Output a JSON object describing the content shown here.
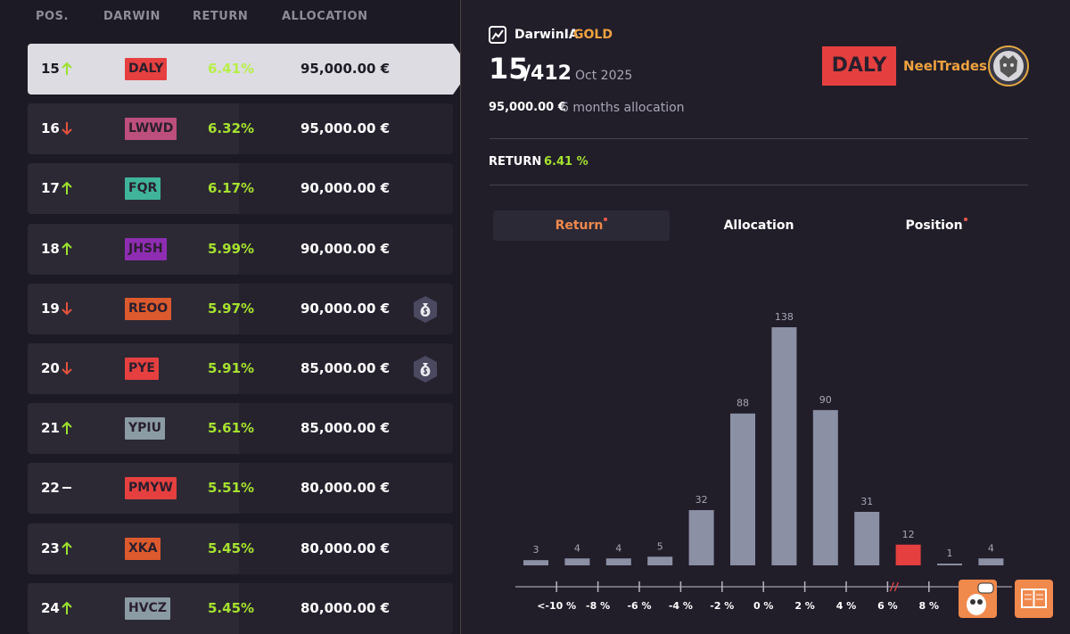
{
  "table": {
    "columns": [
      "POS.",
      "DARWIN",
      "RETURN",
      "ALLOCATION"
    ],
    "selected_index": 0,
    "rows": [
      {
        "pos": "15",
        "trend": "up",
        "darwin": "DALY",
        "color": "#e5403f",
        "return": "6.41%",
        "allocation": "95,000.00 €",
        "badge": false
      },
      {
        "pos": "16",
        "trend": "down",
        "darwin": "LWWD",
        "color": "#bd4f7c",
        "return": "6.32%",
        "allocation": "95,000.00 €",
        "badge": false
      },
      {
        "pos": "17",
        "trend": "up",
        "darwin": "FQR",
        "color": "#3fb49b",
        "return": "6.17%",
        "allocation": "90,000.00 €",
        "badge": false
      },
      {
        "pos": "18",
        "trend": "up",
        "darwin": "JHSH",
        "color": "#8e2db2",
        "return": "5.99%",
        "allocation": "90,000.00 €",
        "badge": false
      },
      {
        "pos": "19",
        "trend": "down",
        "darwin": "REOO",
        "color": "#dc5a2d",
        "return": "5.97%",
        "allocation": "90,000.00 €",
        "badge": true
      },
      {
        "pos": "20",
        "trend": "down",
        "darwin": "PYE",
        "color": "#e5403f",
        "return": "5.91%",
        "allocation": "85,000.00 €",
        "badge": true
      },
      {
        "pos": "21",
        "trend": "up",
        "darwin": "YPIU",
        "color": "#8b9ba4",
        "return": "5.61%",
        "allocation": "85,000.00 €",
        "badge": false
      },
      {
        "pos": "22",
        "trend": "flat",
        "darwin": "PMYW",
        "color": "#e5403f",
        "return": "5.51%",
        "allocation": "80,000.00 €",
        "badge": false
      },
      {
        "pos": "23",
        "trend": "up",
        "darwin": "XKA",
        "color": "#dc5a2d",
        "return": "5.45%",
        "allocation": "80,000.00 €",
        "badge": false
      },
      {
        "pos": "24",
        "trend": "up",
        "darwin": "HVCZ",
        "color": "#8b9ba4",
        "return": "5.45%",
        "allocation": "80,000.00 €",
        "badge": false
      }
    ]
  },
  "detail": {
    "brand": "DarwinIA",
    "tier": "GOLD",
    "position": "15",
    "total": "/412",
    "period": "Oct 2025",
    "darwin": "DALY",
    "darwin_color": "#e5403f",
    "trader": "NeelTrades",
    "allocation": "95,000.00 €",
    "allocation_note": "6 months allocation",
    "return_label": "RETURN",
    "return_value": "6.41 %",
    "tabs": [
      {
        "label": "Return",
        "active": true,
        "dot": true
      },
      {
        "label": "Allocation",
        "active": false,
        "dot": false
      },
      {
        "label": "Position",
        "active": false,
        "dot": true
      }
    ]
  },
  "chart_data": {
    "type": "bar",
    "values": [
      3,
      4,
      4,
      5,
      32,
      88,
      138,
      90,
      31,
      12,
      1,
      4
    ],
    "edge_labels": [
      "<-10 %",
      "-8 %",
      "-6 %",
      "-4 %",
      "-2 %",
      "0 %",
      "2 %",
      "4 %",
      "6 %",
      "8 %",
      ">"
    ],
    "color": "#8c90a5",
    "highlight_index": 9,
    "highlight_color": "#e5403f"
  }
}
